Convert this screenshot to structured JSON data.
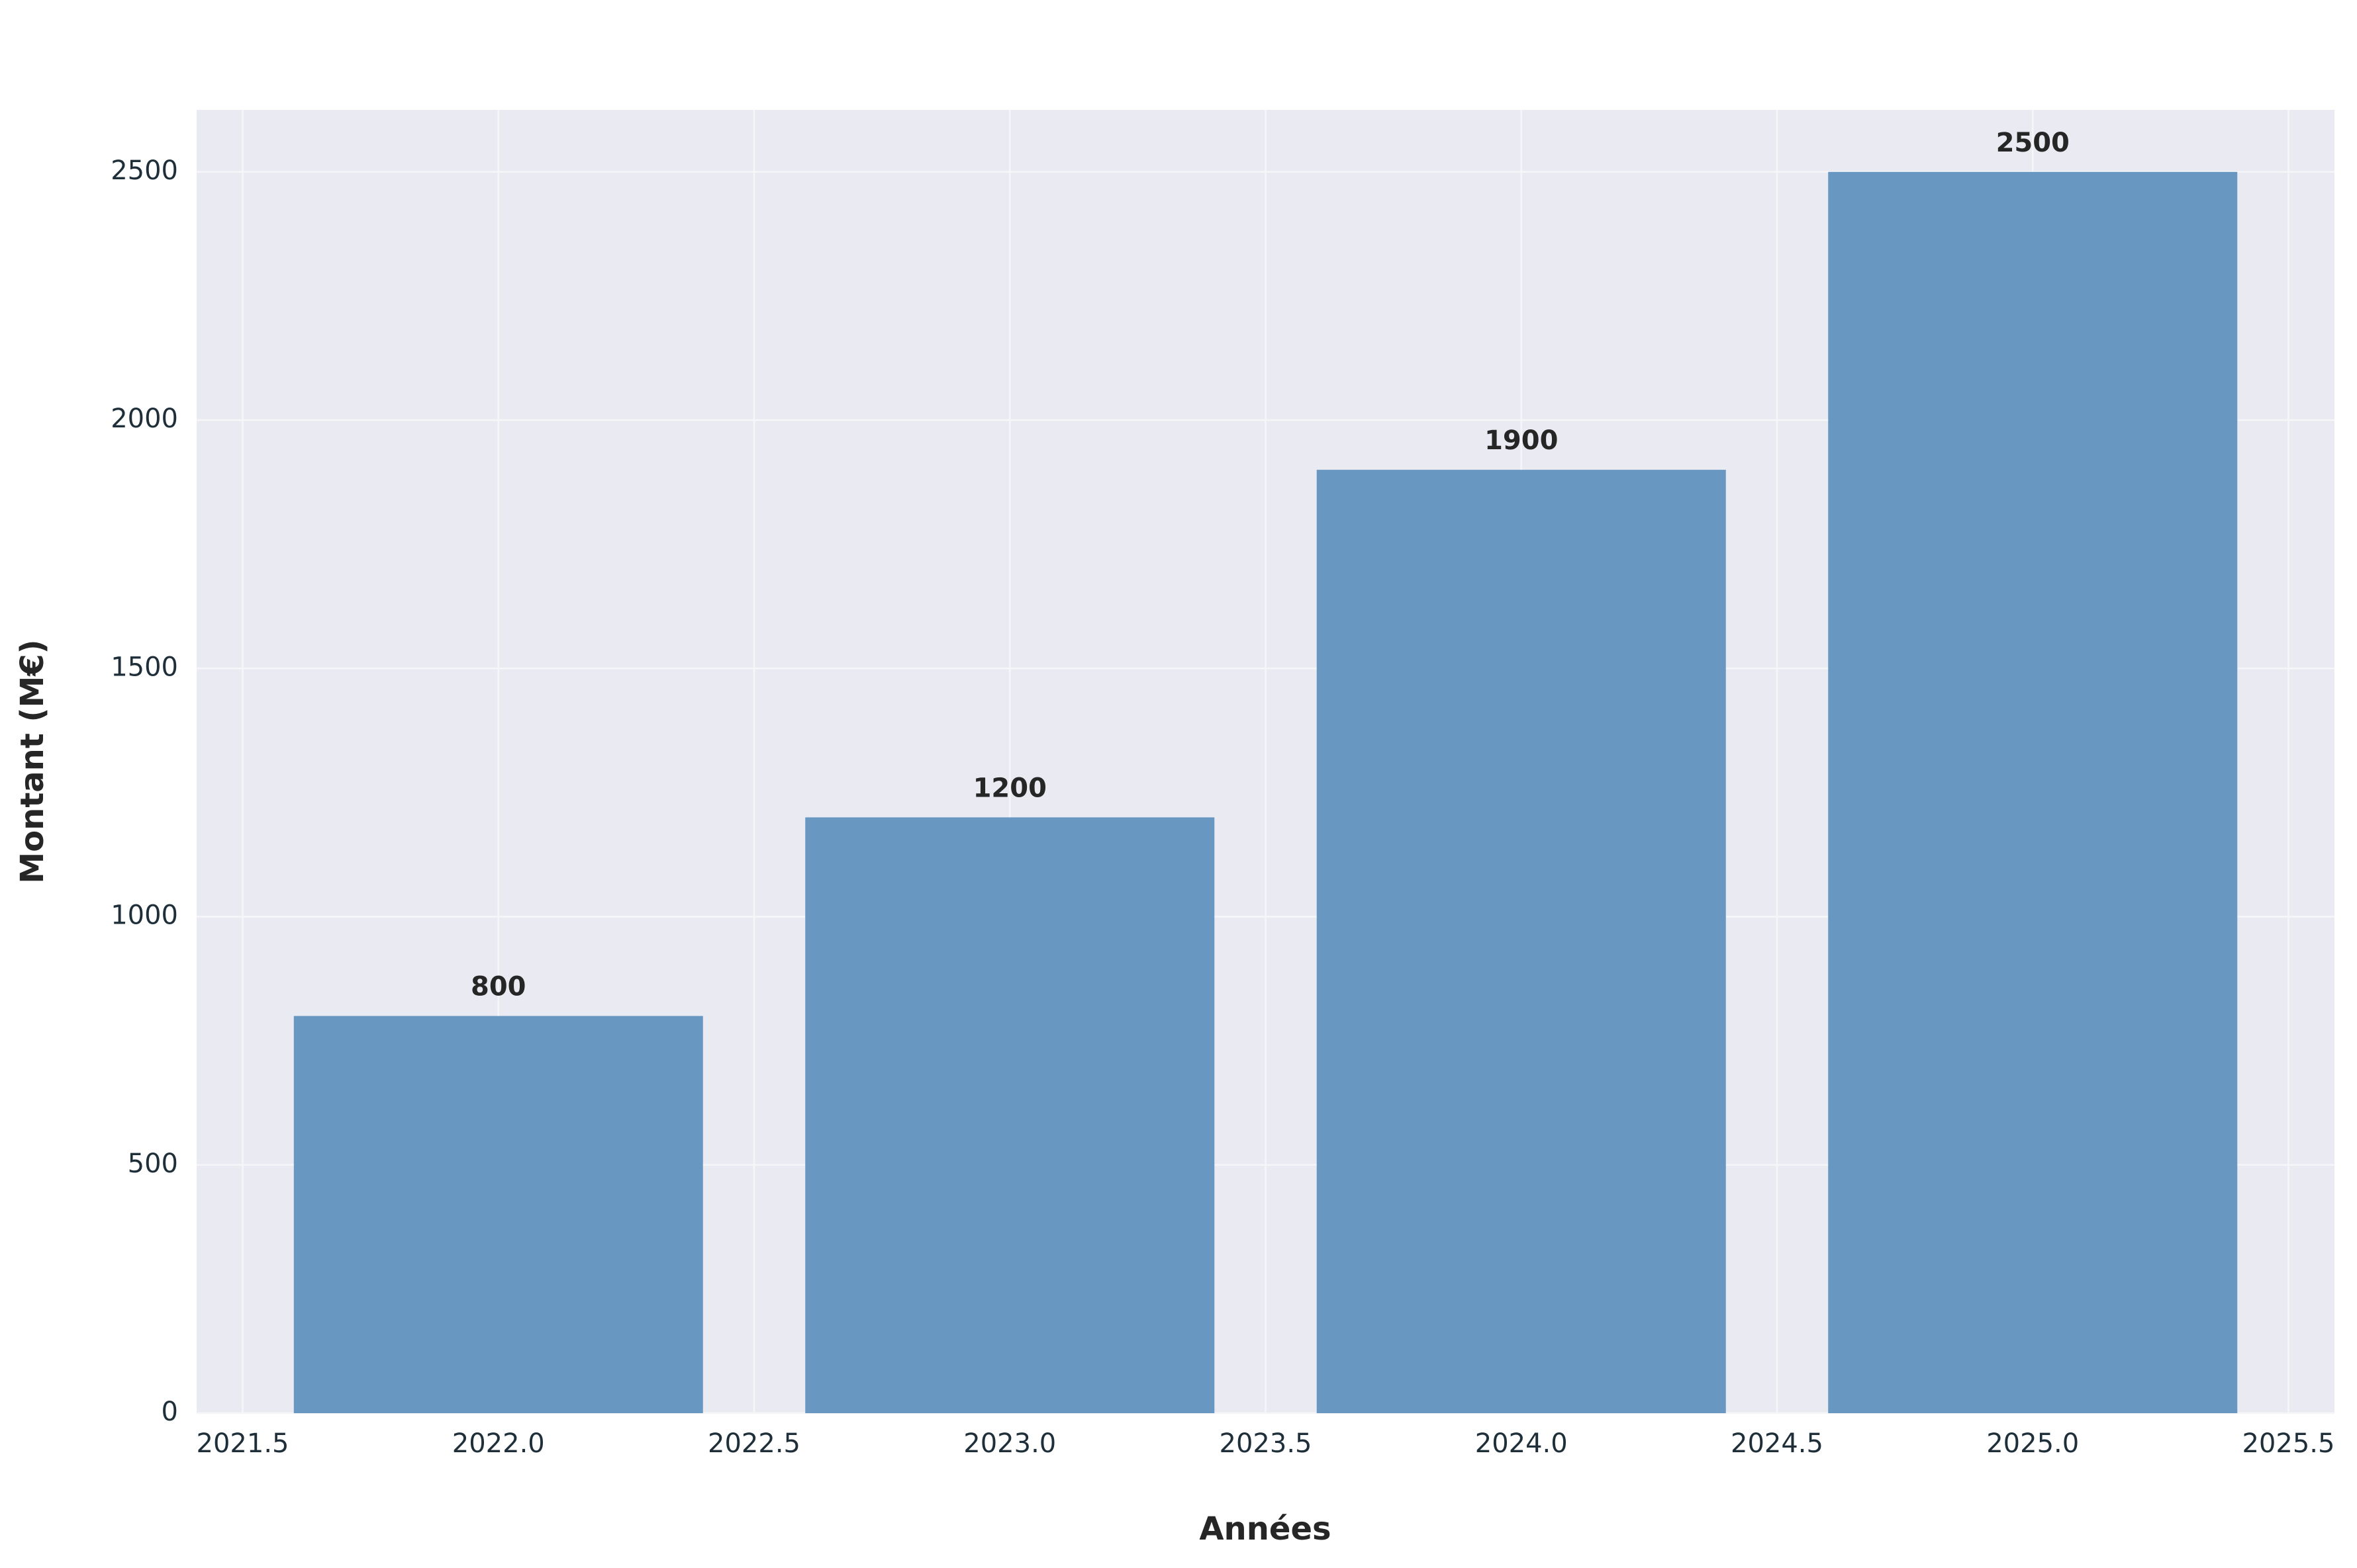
{
  "chart_data": {
    "type": "bar",
    "x_label": "Années",
    "y_label": "Montant (M€)",
    "x": [
      2022,
      2023,
      2024,
      2025
    ],
    "values": [
      800,
      1200,
      1900,
      2500
    ],
    "color": "#6897c1",
    "xlim": [
      2021.41,
      2025.59
    ],
    "ylim": [
      0,
      2625
    ],
    "xticks": [
      2021.5,
      {
        "value": 2022,
        "label": "2022.0"
      },
      2022.5,
      {
        "value": 2023,
        "label": "2023.0"
      },
      2023.5,
      {
        "value": 2024,
        "label": "2024.0"
      },
      2024.5,
      {
        "value": 2025,
        "label": "2025.0"
      },
      2025.5
    ],
    "yticks": [
      0,
      500,
      1000,
      1500,
      2000,
      2500
    ],
    "grid": true
  }
}
